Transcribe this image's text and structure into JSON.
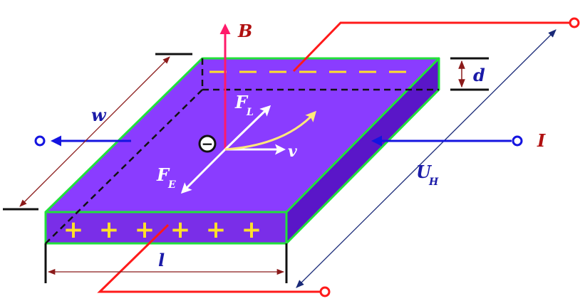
{
  "labels": {
    "B": "B",
    "d": "d",
    "w": "w",
    "F": "F",
    "L": "L",
    "E": "E",
    "v": "v",
    "I": "I",
    "U": "U",
    "H": "H",
    "l": "l",
    "minus": "−",
    "plus": "+",
    "dash": "−"
  },
  "charges": {
    "negative_count": 7,
    "positive_count": 6
  },
  "colors": {
    "slab_top": "#8a3cff",
    "slab_front": "#7a2ee8",
    "slab_side": "#5a16c8",
    "edge": "#21e03a",
    "wire": "#ff1a1a",
    "current": "#1414e0",
    "dimension": "#8b1a1a",
    "b_field": "#ff1a6a",
    "charge_marks": "#ffe02a",
    "vectors": "#ffffff",
    "trajectory": "#ffe97a",
    "label_blue": "#1a1aa8",
    "label_red": "#b01010"
  }
}
